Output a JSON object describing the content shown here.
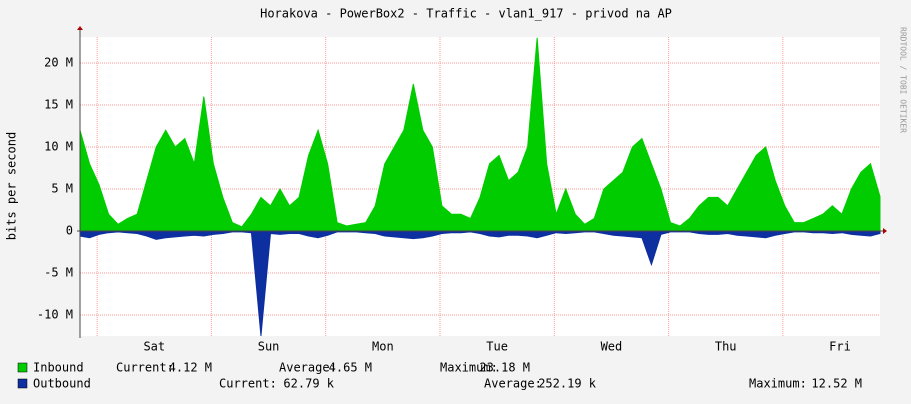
{
  "chart_data": {
    "type": "area",
    "title": "Horakova - PowerBox2 - Traffic - vlan1_917 - privod na AP",
    "y_label": "bits per second",
    "watermark": "RRDTOOL / TOBI OETIKER",
    "x": [
      0,
      2,
      4,
      6,
      8,
      10,
      12,
      14,
      16,
      18,
      20,
      22,
      24,
      26,
      28,
      30,
      32,
      34,
      36,
      38,
      40,
      42,
      44,
      46,
      48,
      50,
      52,
      54,
      56,
      58,
      60,
      62,
      64,
      66,
      68,
      70,
      72,
      74,
      76,
      78,
      80,
      82,
      84,
      86,
      88,
      90,
      92,
      94,
      96,
      98,
      100,
      102,
      104,
      106,
      108,
      110,
      112,
      114,
      116,
      118,
      120,
      122,
      124,
      126,
      128,
      130,
      132,
      134,
      136,
      138,
      140,
      142,
      144,
      146,
      148,
      150,
      152,
      154,
      156,
      158,
      160,
      162,
      164,
      166,
      168
    ],
    "xlim": [
      0,
      168
    ],
    "xticks": [
      {
        "value": 15.6,
        "label": "Sat"
      },
      {
        "value": 39.6,
        "label": "Sun"
      },
      {
        "value": 63.6,
        "label": "Mon"
      },
      {
        "value": 87.6,
        "label": "Tue"
      },
      {
        "value": 111.6,
        "label": "Wed"
      },
      {
        "value": 135.6,
        "label": "Thu"
      },
      {
        "value": 159.6,
        "label": "Fri"
      }
    ],
    "xgrid": [
      3.6,
      27.6,
      51.6,
      75.6,
      99.6,
      123.6,
      147.6
    ],
    "ylim": [
      -12.5,
      23.1
    ],
    "yticks": [
      {
        "value": -10,
        "label": "-10 M"
      },
      {
        "value": -5,
        "label": "-5 M"
      },
      0,
      {
        "value": 5,
        "label": "5 M"
      },
      {
        "value": 10,
        "label": "10 M"
      },
      {
        "value": 15,
        "label": "15 M"
      },
      {
        "value": 20,
        "label": "20 M"
      }
    ],
    "grid": true,
    "series": [
      {
        "name": "Inbound",
        "color": "#00cc00",
        "values": [
          12,
          8,
          5.5,
          2,
          0.8,
          1.5,
          2,
          6,
          10,
          12,
          10,
          11,
          8,
          16,
          8,
          4,
          1,
          0.5,
          2,
          4,
          3,
          5,
          3,
          4,
          9,
          12,
          8,
          1,
          0.6,
          0.8,
          1,
          3,
          8,
          10,
          12,
          17.5,
          12,
          10,
          3,
          2,
          2,
          1.5,
          4,
          8,
          9,
          6,
          7,
          10,
          23,
          8,
          2,
          5,
          2,
          0.8,
          1.5,
          5,
          6,
          7,
          10,
          11,
          8,
          5,
          1,
          0.6,
          1.5,
          3,
          4,
          4,
          3,
          5,
          7,
          9,
          10,
          6,
          3,
          1,
          1,
          1.5,
          2,
          3,
          2,
          5,
          7,
          8,
          4.1
        ],
        "stats": [
          {
            "label": "Current:",
            "value": "4.12 M"
          },
          {
            "label": "Average:",
            "value": "4.65 M"
          },
          {
            "label": "Maximum:",
            "value": "23.18 M"
          }
        ]
      },
      {
        "name": "Outbound",
        "color": "#0d2fa0",
        "values": [
          -0.6,
          -0.8,
          -0.4,
          -0.2,
          -0.1,
          -0.2,
          -0.3,
          -0.6,
          -1,
          -0.8,
          -0.7,
          -0.6,
          -0.5,
          -0.6,
          -0.4,
          -0.3,
          -0.1,
          -0.1,
          -0.2,
          -12.5,
          -0.3,
          -0.4,
          -0.3,
          -0.3,
          -0.6,
          -0.8,
          -0.5,
          -0.1,
          -0.1,
          -0.1,
          -0.2,
          -0.3,
          -0.6,
          -0.7,
          -0.8,
          -0.9,
          -0.8,
          -0.6,
          -0.3,
          -0.2,
          -0.2,
          -0.1,
          -0.3,
          -0.6,
          -0.7,
          -0.5,
          -0.5,
          -0.6,
          -0.8,
          -0.5,
          -0.2,
          -0.3,
          -0.2,
          -0.1,
          -0.1,
          -0.3,
          -0.5,
          -0.6,
          -0.7,
          -0.8,
          -4,
          -0.4,
          -0.1,
          -0.1,
          -0.1,
          -0.3,
          -0.4,
          -0.4,
          -0.3,
          -0.5,
          -0.6,
          -0.7,
          -0.8,
          -0.5,
          -0.3,
          -0.1,
          -0.1,
          -0.2,
          -0.2,
          -0.3,
          -0.2,
          -0.4,
          -0.5,
          -0.6,
          -0.3
        ],
        "stats": [
          {
            "label": "Current:",
            "value": "62.79 k"
          },
          {
            "label": "Average:",
            "value": "252.19 k"
          },
          {
            "label": "Maximum:",
            "value": "12.52 M"
          }
        ]
      }
    ]
  }
}
